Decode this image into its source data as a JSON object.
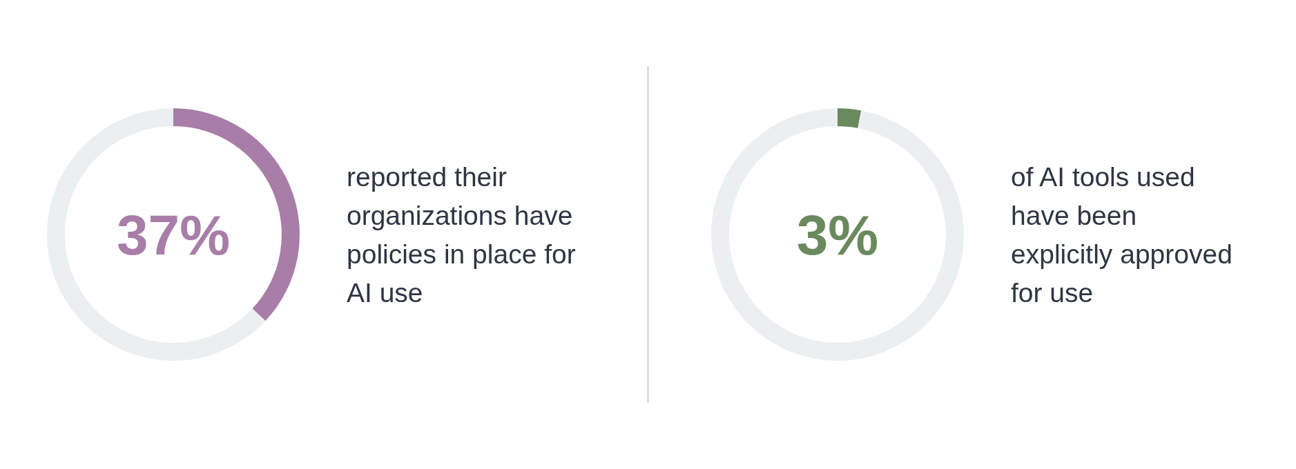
{
  "chart_data": [
    {
      "type": "donut",
      "title": "37%",
      "categories": [
        null,
        null
      ],
      "values": [
        37,
        63
      ],
      "colors": [
        "#a87ea8",
        "#eceff0"
      ],
      "annotations": [
        "reported their organizations have policies in place for AI use"
      ]
    },
    {
      "type": "donut",
      "title": "3%",
      "categories": [
        null,
        null
      ],
      "values": [
        3,
        97
      ],
      "colors": [
        "#6a8a5e",
        "#eceff0"
      ],
      "annotations": [
        "of AI tools used have been explicitly approved for use"
      ]
    }
  ]
}
